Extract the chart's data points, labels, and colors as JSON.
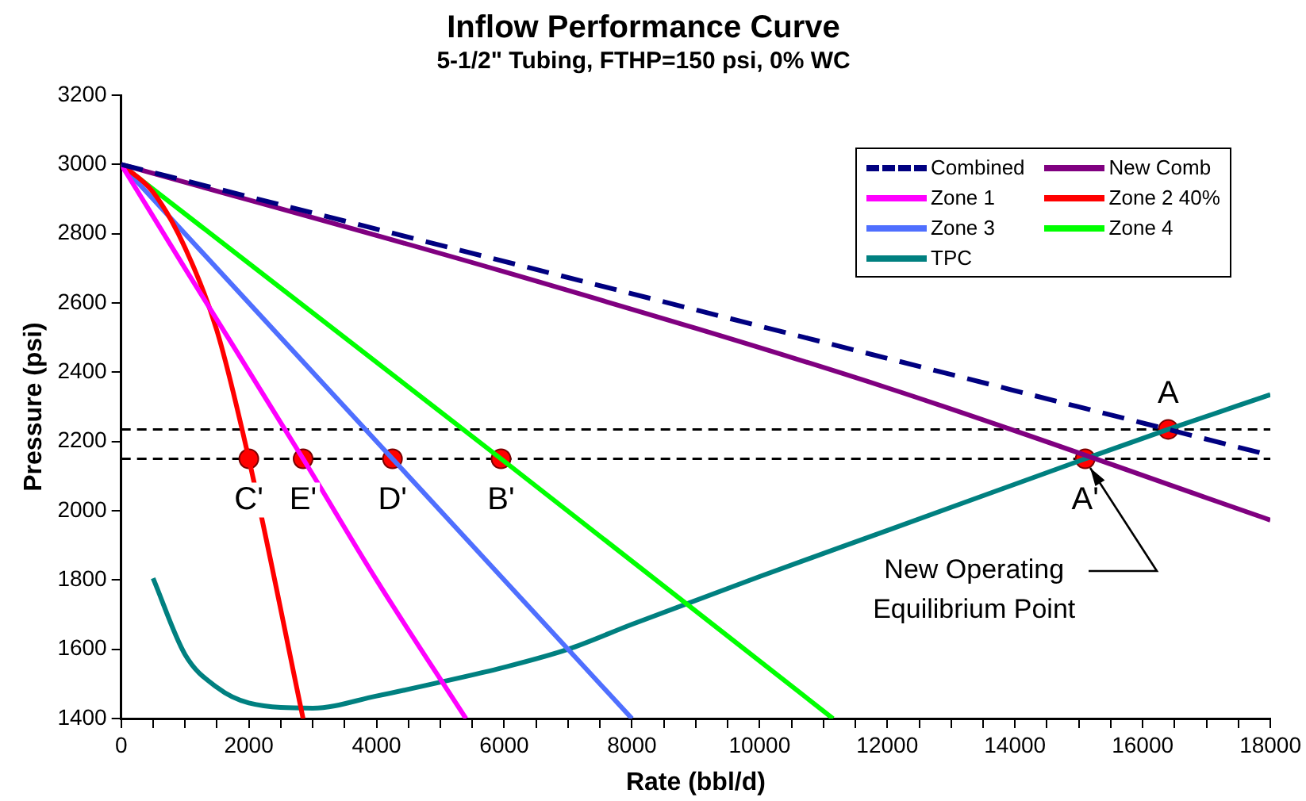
{
  "chart_data": {
    "type": "line",
    "title": "Inflow Performance Curve",
    "subtitle": "5-1/2\" Tubing, FTHP=150 psi, 0% WC",
    "xlabel": "Rate (bbl/d)",
    "ylabel": "Pressure (psi)",
    "xlim": [
      0,
      18000
    ],
    "ylim": [
      1400,
      3200
    ],
    "xticks": [
      0,
      {
        "value": 500,
        "label": null
      },
      {
        "value": 1000,
        "label": null
      },
      {
        "value": 1500,
        "label": null
      },
      2000,
      {
        "value": 2500,
        "label": null
      },
      {
        "value": 3000,
        "label": null
      },
      {
        "value": 3500,
        "label": null
      },
      4000,
      {
        "value": 4500,
        "label": null
      },
      {
        "value": 5000,
        "label": null
      },
      {
        "value": 5500,
        "label": null
      },
      6000,
      {
        "value": 6500,
        "label": null
      },
      {
        "value": 7000,
        "label": null
      },
      {
        "value": 7500,
        "label": null
      },
      8000,
      {
        "value": 8500,
        "label": null
      },
      {
        "value": 9000,
        "label": null
      },
      {
        "value": 9500,
        "label": null
      },
      10000,
      {
        "value": 10500,
        "label": null
      },
      {
        "value": 11000,
        "label": null
      },
      {
        "value": 11500,
        "label": null
      },
      12000,
      {
        "value": 12500,
        "label": null
      },
      {
        "value": 13000,
        "label": null
      },
      {
        "value": 13500,
        "label": null
      },
      14000,
      {
        "value": 14500,
        "label": null
      },
      {
        "value": 15000,
        "label": null
      },
      {
        "value": 15500,
        "label": null
      },
      16000,
      {
        "value": 16500,
        "label": null
      },
      {
        "value": 17000,
        "label": null
      },
      {
        "value": 17500,
        "label": null
      },
      18000
    ],
    "yticks": [
      1400,
      1600,
      1800,
      2000,
      2200,
      2400,
      2600,
      2800,
      3000,
      3200
    ],
    "grid": false,
    "legend": "top right",
    "marker": "none",
    "series": [
      {
        "name": "Combined",
        "type": "line",
        "color": "#000080",
        "line_style": "dashed",
        "x": [
          0,
          18000
        ],
        "values": [
          3000,
          2160
        ]
      },
      {
        "name": "New Comb",
        "type": "line",
        "color": "#800080",
        "line_style": "solid",
        "x": [
          0,
          6000,
          12000,
          18000
        ],
        "values": [
          3000,
          2690,
          2355,
          1973
        ]
      },
      {
        "name": "Zone 1",
        "type": "line",
        "color": "#ff00ff",
        "line_style": "solid",
        "x": [
          0,
          1000,
          2850,
          4000,
          5400
        ],
        "values": [
          3000,
          2700,
          2150,
          1800,
          1400
        ]
      },
      {
        "name": "Zone 2 40%",
        "type": "line",
        "color": "#ff0000",
        "line_style": "solid",
        "x": [
          0,
          500,
          1000,
          1500,
          2000,
          2850
        ],
        "values": [
          3000,
          2920,
          2760,
          2520,
          2150,
          1400
        ]
      },
      {
        "name": "Zone 3",
        "type": "line",
        "color": "#4f6fff",
        "line_style": "solid",
        "x": [
          0,
          4250,
          8000
        ],
        "values": [
          3000,
          2150,
          1400
        ]
      },
      {
        "name": "Zone 4",
        "type": "line",
        "color": "#00ff00",
        "line_style": "solid",
        "x": [
          0,
          5950,
          11150
        ],
        "values": [
          3000,
          2150,
          1400
        ]
      },
      {
        "name": "TPC",
        "type": "line",
        "color": "#008080",
        "line_style": "solid",
        "x": [
          500,
          1000,
          1500,
          2000,
          3000,
          4000,
          5000,
          6000,
          7000,
          8000,
          10000,
          12000,
          15100,
          16400,
          18000
        ],
        "values": [
          1805,
          1585,
          1490,
          1445,
          1430,
          1465,
          1505,
          1548,
          1600,
          1672,
          1810,
          1943,
          2150,
          2235,
          2335
        ]
      },
      {
        "type": "scatter",
        "marker": "circle",
        "color": "#ff0000",
        "x": [
          2000,
          2850,
          4250,
          5950,
          15100,
          16400
        ],
        "values": [
          2150,
          2150,
          2150,
          2150,
          2150,
          2235
        ]
      }
    ],
    "ref_lines": [
      {
        "axis": "y",
        "value": 2235,
        "color": "#000000",
        "line_style": "dashed"
      },
      {
        "axis": "y",
        "value": 2150,
        "color": "#000000",
        "line_style": "dashed"
      }
    ],
    "annotations": [
      {
        "text": "C'",
        "x": 2000,
        "y": 2150
      },
      {
        "text": "E'",
        "x": 2850,
        "y": 2150
      },
      {
        "text": "D'",
        "x": 4250,
        "y": 2150
      },
      {
        "text": "B'",
        "x": 5950,
        "y": 2150
      },
      {
        "text": "A'",
        "x": 15100,
        "y": 2150
      },
      {
        "text": "A",
        "x": 16400,
        "y": 2235
      },
      {
        "text": "New Operating Equilibrium Point",
        "x": 15100,
        "y": 2150
      }
    ]
  }
}
